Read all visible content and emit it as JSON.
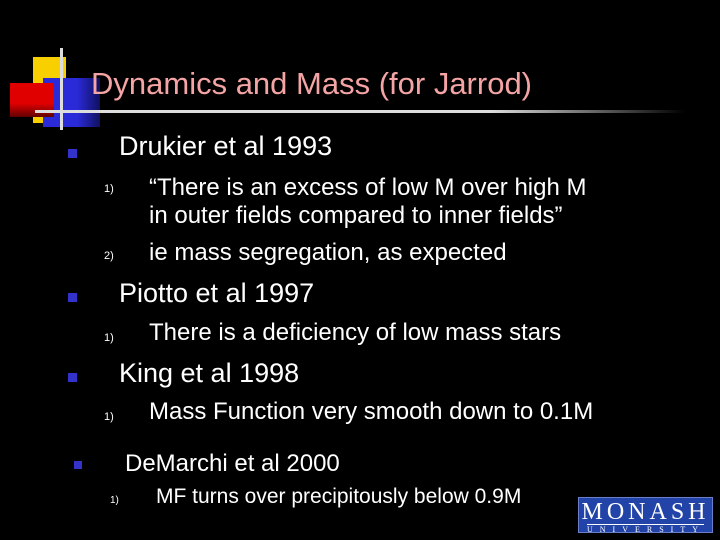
{
  "title": "Dynamics and Mass (for Jarrod)",
  "colors": {
    "title": "#f4a4a4",
    "bullet": "#3333cc",
    "logo_bg": "#2244a8"
  },
  "items": [
    {
      "text": "Drukier et al 1993",
      "subs": [
        {
          "num": "1)",
          "text": "“There is an excess of low M over high M",
          "text2": "in outer fields compared to inner fields”"
        },
        {
          "num": "2)",
          "text": "ie mass segregation, as expected"
        }
      ]
    },
    {
      "text": "Piotto et al 1997",
      "subs": [
        {
          "num": "1)",
          "text": "There is a deficiency of low mass stars"
        }
      ]
    },
    {
      "text": "King et al 1998",
      "subs": [
        {
          "num": "1)",
          "text": "Mass Function very smooth down to 0.1M"
        }
      ]
    },
    {
      "text": "DeMarchi et al 2000",
      "subs": [
        {
          "num": "1)",
          "text": "MF turns over precipitously below 0.9M"
        }
      ]
    }
  ],
  "logo": {
    "line1": "MONASH",
    "line2": "UNIVERSITY"
  }
}
